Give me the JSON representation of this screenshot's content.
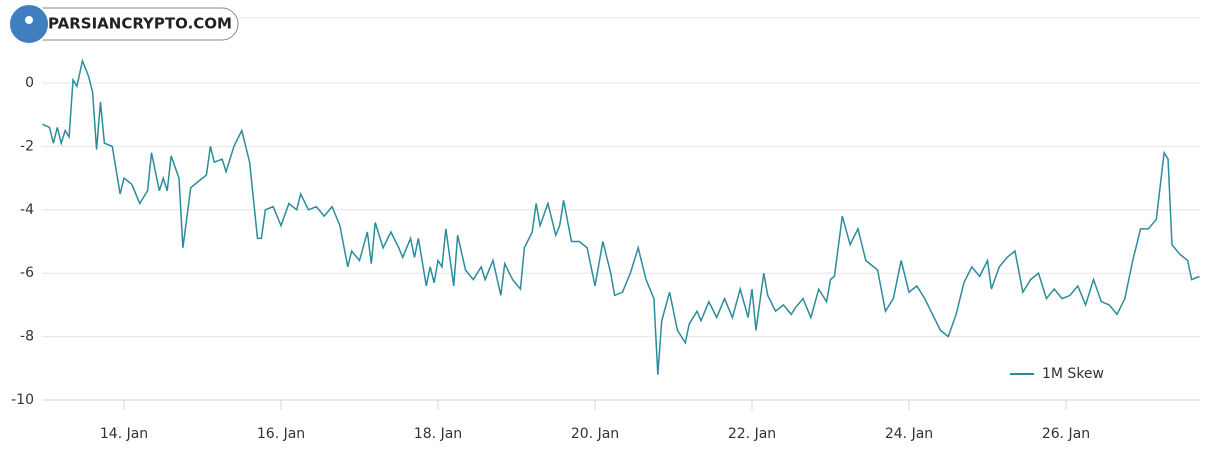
{
  "chart_data": {
    "type": "line",
    "watermark": "PARSIANCRYPTO.COM",
    "x": [
      12.96,
      13.05,
      13.1,
      13.15,
      13.2,
      13.25,
      13.3,
      13.35,
      13.4,
      13.47,
      13.55,
      13.6,
      13.65,
      13.7,
      13.75,
      13.85,
      13.95,
      14.0,
      14.1,
      14.2,
      14.3,
      14.35,
      14.45,
      14.5,
      14.55,
      14.6,
      14.7,
      14.75,
      14.85,
      14.95,
      15.05,
      15.1,
      15.15,
      15.25,
      15.3,
      15.4,
      15.5,
      15.6,
      15.7,
      15.75,
      15.8,
      15.9,
      16.0,
      16.1,
      16.2,
      16.25,
      16.35,
      16.45,
      16.55,
      16.65,
      16.75,
      16.85,
      16.9,
      17.0,
      17.1,
      17.15,
      17.2,
      17.3,
      17.4,
      17.5,
      17.55,
      17.65,
      17.7,
      17.75,
      17.85,
      17.9,
      17.95,
      18.0,
      18.05,
      18.1,
      18.15,
      18.2,
      18.25,
      18.35,
      18.45,
      18.55,
      18.6,
      18.7,
      18.8,
      18.85,
      18.95,
      19.05,
      19.1,
      19.2,
      19.25,
      19.3,
      19.4,
      19.5,
      19.55,
      19.6,
      19.7,
      19.8,
      19.9,
      20.0,
      20.1,
      20.2,
      20.25,
      20.35,
      20.45,
      20.55,
      20.65,
      20.75,
      20.8,
      20.85,
      20.95,
      21.05,
      21.15,
      21.2,
      21.3,
      21.35,
      21.45,
      21.55,
      21.65,
      21.75,
      21.85,
      21.95,
      22.0,
      22.05,
      22.15,
      22.2,
      22.3,
      22.4,
      22.5,
      22.55,
      22.65,
      22.75,
      22.85,
      22.95,
      23.0,
      23.05,
      23.15,
      23.25,
      23.35,
      23.45,
      23.6,
      23.7,
      23.8,
      23.9,
      24.0,
      24.1,
      24.2,
      24.3,
      24.4,
      24.5,
      24.6,
      24.7,
      24.8,
      24.9,
      25.0,
      25.05,
      25.15,
      25.25,
      25.35,
      25.45,
      25.55,
      25.65,
      25.75,
      25.85,
      25.95,
      26.05,
      26.15,
      26.25,
      26.35,
      26.45,
      26.55,
      26.65,
      26.75,
      26.85,
      26.95,
      27.05,
      27.15,
      27.25,
      27.3,
      27.35,
      27.45,
      27.55,
      27.6,
      27.7
    ],
    "series": [
      {
        "name": "1M Skew",
        "color": "#2b8c9c",
        "values": [
          -1.3,
          -1.4,
          -1.9,
          -1.4,
          -1.9,
          -1.5,
          -1.7,
          0.1,
          -0.1,
          0.7,
          0.2,
          -0.3,
          -2.1,
          -0.6,
          -1.9,
          -2.0,
          -3.5,
          -3.0,
          -3.2,
          -3.8,
          -3.4,
          -2.2,
          -3.4,
          -3.0,
          -3.4,
          -2.3,
          -3.0,
          -5.2,
          -3.3,
          -3.1,
          -2.9,
          -2.0,
          -2.5,
          -2.4,
          -2.8,
          -2.0,
          -1.5,
          -2.5,
          -4.9,
          -4.9,
          -4.0,
          -3.9,
          -4.5,
          -3.8,
          -4.0,
          -3.5,
          -4.0,
          -3.9,
          -4.2,
          -3.9,
          -4.5,
          -5.8,
          -5.3,
          -5.6,
          -4.7,
          -5.7,
          -4.4,
          -5.2,
          -4.7,
          -5.2,
          -5.5,
          -4.9,
          -5.5,
          -4.9,
          -6.4,
          -5.8,
          -6.3,
          -5.6,
          -5.8,
          -4.6,
          -5.5,
          -6.4,
          -4.8,
          -5.9,
          -6.2,
          -5.8,
          -6.2,
          -5.6,
          -6.7,
          -5.7,
          -6.2,
          -6.5,
          -5.2,
          -4.7,
          -3.8,
          -4.5,
          -3.8,
          -4.8,
          -4.5,
          -3.7,
          -5.0,
          -5.0,
          -5.2,
          -6.4,
          -5.0,
          -6.0,
          -6.7,
          -6.6,
          -6.0,
          -5.2,
          -6.2,
          -6.8,
          -9.2,
          -7.5,
          -6.6,
          -7.8,
          -8.2,
          -7.6,
          -7.2,
          -7.5,
          -6.9,
          -7.4,
          -6.8,
          -7.4,
          -6.5,
          -7.4,
          -6.5,
          -7.8,
          -6.0,
          -6.7,
          -7.2,
          -7.0,
          -7.3,
          -7.1,
          -6.8,
          -7.4,
          -6.5,
          -6.9,
          -6.2,
          -6.1,
          -4.2,
          -5.1,
          -4.6,
          -5.6,
          -5.9,
          -7.2,
          -6.8,
          -5.6,
          -6.6,
          -6.4,
          -6.8,
          -7.3,
          -7.8,
          -8.0,
          -7.3,
          -6.3,
          -5.8,
          -6.1,
          -5.6,
          -6.5,
          -5.8,
          -5.5,
          -5.3,
          -6.6,
          -6.2,
          -6.0,
          -6.8,
          -6.5,
          -6.8,
          -6.7,
          -6.4,
          -7.0,
          -6.2,
          -6.9,
          -7.0,
          -7.3,
          -6.8,
          -5.6,
          -4.6,
          -4.6,
          -4.3,
          -2.2,
          -2.4,
          -5.1,
          -5.4,
          -5.6,
          -6.2,
          -6.1
        ]
      }
    ],
    "xlim": [
      12.955,
      27.707
    ],
    "xticks": [
      {
        "value": 14,
        "label": "14. Jan"
      },
      {
        "value": 16,
        "label": "16. Jan"
      },
      {
        "value": 18,
        "label": "18. Jan"
      },
      {
        "value": 20,
        "label": "20. Jan"
      },
      {
        "value": 22,
        "label": "22. Jan"
      },
      {
        "value": 24,
        "label": "24. Jan"
      },
      {
        "value": 26,
        "label": "26. Jan"
      }
    ],
    "ylim": [
      -10,
      2.05
    ],
    "yticks": [
      -10,
      -8,
      -6,
      -4,
      -2,
      0
    ],
    "grid": true,
    "legend": "lower right"
  }
}
